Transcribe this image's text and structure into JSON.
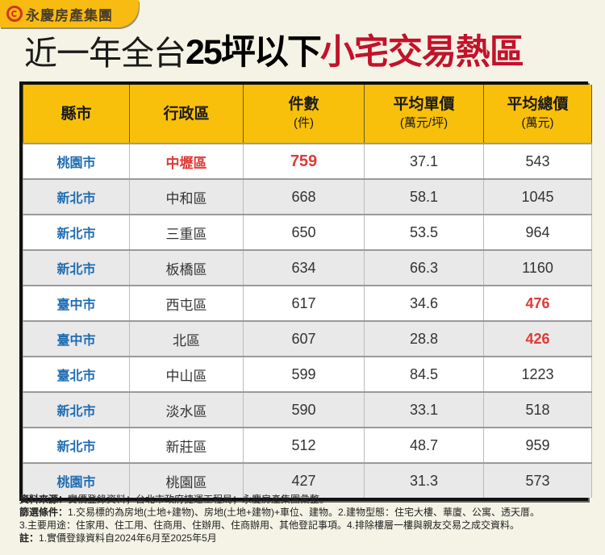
{
  "brand": {
    "logo_icon": "yungching-logo-icon",
    "name": "永慶房產集團",
    "accent_color": "#f8bb12"
  },
  "title": {
    "part1": "近一年全台",
    "part2": "25坪以下",
    "part3": "小宅交易熱區",
    "highlight_color": "#c3122a"
  },
  "table": {
    "headers": [
      {
        "label": "縣市",
        "sub": ""
      },
      {
        "label": "行政區",
        "sub": ""
      },
      {
        "label": "件數",
        "sub": "(件)"
      },
      {
        "label": "平均單價",
        "sub": "(萬元/坪)"
      },
      {
        "label": "平均總價",
        "sub": "(萬元)"
      }
    ],
    "rows": [
      {
        "city": "桃園市",
        "district": "中壢區",
        "count": "759",
        "unit_price": "37.1",
        "total_price": "543"
      },
      {
        "city": "新北市",
        "district": "中和區",
        "count": "668",
        "unit_price": "58.1",
        "total_price": "1045"
      },
      {
        "city": "新北市",
        "district": "三重區",
        "count": "650",
        "unit_price": "53.5",
        "total_price": "964"
      },
      {
        "city": "新北市",
        "district": "板橋區",
        "count": "634",
        "unit_price": "66.3",
        "total_price": "1160"
      },
      {
        "city": "臺中市",
        "district": "西屯區",
        "count": "617",
        "unit_price": "34.6",
        "total_price": "476"
      },
      {
        "city": "臺中市",
        "district": "北區",
        "count": "607",
        "unit_price": "28.8",
        "total_price": "426"
      },
      {
        "city": "臺北市",
        "district": "中山區",
        "count": "599",
        "unit_price": "84.5",
        "total_price": "1223"
      },
      {
        "city": "新北市",
        "district": "淡水區",
        "count": "590",
        "unit_price": "33.1",
        "total_price": "518"
      },
      {
        "city": "新北市",
        "district": "新莊區",
        "count": "512",
        "unit_price": "48.7",
        "total_price": "959"
      },
      {
        "city": "桃園市",
        "district": "桃園區",
        "count": "427",
        "unit_price": "31.3",
        "total_price": "573"
      }
    ],
    "colors": {
      "header_bg": "#f8c00a",
      "city_text": "#1f6db1",
      "highlight_text": "#e03a36"
    }
  },
  "notes": {
    "source_label": "資料來源：",
    "source_text": "實價登錄資料；台北市政府捷運工程局；永慶房產集團彙整。",
    "filter_label": "篩選條件：",
    "filter_text_1": "1.交易標的為房地(土地+建物)、房地(土地+建物)+車位、建物。2.建物型態：住宅大樓、華廈、公寓、透天厝。",
    "filter_text_2": "3.主要用途：住家用、住工用、住商用、住辦用、住商辦用、其他登記事項。4.排除樓層一樓與親友交易之成交資料。",
    "remark_label": "註：",
    "remark_text": "1.實價登錄資料自2024年6月至2025年5月"
  }
}
